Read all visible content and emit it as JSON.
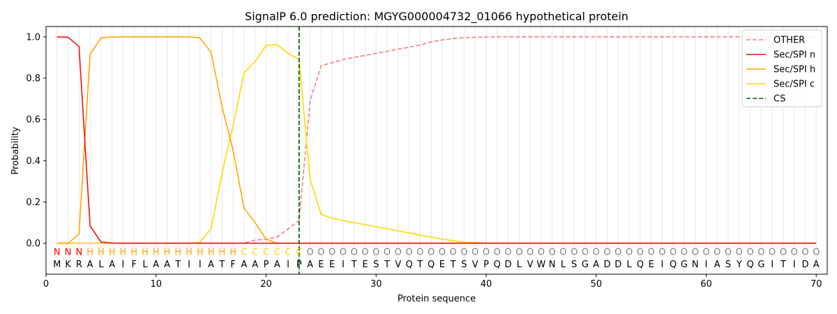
{
  "chart_data": {
    "type": "line",
    "title": "SignalP 6.0 prediction: MGYG000004732_01066 hypothetical protein",
    "xlabel": "Protein sequence",
    "ylabel": "Probability",
    "xlim": [
      0,
      71
    ],
    "ylim": [
      -0.15,
      1.05
    ],
    "x_ticks": [
      0,
      10,
      20,
      30,
      40,
      50,
      60,
      70
    ],
    "y_ticks": [
      0.0,
      0.2,
      0.4,
      0.6,
      0.8,
      1.0
    ],
    "grid": "vertical lines at each residue",
    "legend_position": "top-right",
    "sequence": [
      "M",
      "K",
      "R",
      "A",
      "L",
      "A",
      "I",
      "F",
      "L",
      "A",
      "A",
      "T",
      "I",
      "I",
      "A",
      "T",
      "F",
      "A",
      "A",
      "P",
      "A",
      "I",
      "P",
      "A",
      "E",
      "E",
      "I",
      "T",
      "E",
      "S",
      "T",
      "V",
      "Q",
      "T",
      "Q",
      "E",
      "T",
      "S",
      "V",
      "P",
      "Q",
      "D",
      "L",
      "V",
      "W",
      "N",
      "L",
      "S",
      "G",
      "A",
      "D",
      "D",
      "L",
      "Q",
      "E",
      "I",
      "Q",
      "G",
      "N",
      "I",
      "A",
      "S",
      "Y",
      "Q",
      "G",
      "I",
      "T",
      "I",
      "D",
      "A"
    ],
    "region_labels": [
      "N",
      "N",
      "N",
      "H",
      "H",
      "H",
      "H",
      "H",
      "H",
      "H",
      "H",
      "H",
      "H",
      "H",
      "H",
      "H",
      "H",
      "C",
      "C",
      "C",
      "C",
      "C",
      "C",
      "O",
      "O",
      "O",
      "O",
      "O",
      "O",
      "O",
      "O",
      "O",
      "O",
      "O",
      "O",
      "O",
      "O",
      "O",
      "O",
      "O",
      "O",
      "O",
      "O",
      "O",
      "O",
      "O",
      "O",
      "O",
      "O",
      "O",
      "O",
      "O",
      "O",
      "O",
      "O",
      "O",
      "O",
      "O",
      "O",
      "O",
      "O",
      "O",
      "O",
      "O",
      "O",
      "O",
      "O",
      "O",
      "O",
      "O"
    ],
    "region_colors": {
      "N": "#ff0000",
      "H": "#ffa500",
      "C": "#ffd700",
      "O": "#808080"
    },
    "cleavage_site": 23,
    "series": [
      {
        "name": "OTHER",
        "color": "#f08080",
        "dash": true,
        "values": [
          0,
          0,
          0,
          0,
          0,
          0,
          0,
          0,
          0,
          0,
          0,
          0,
          0,
          0,
          0,
          0,
          0,
          0.001,
          0.015,
          0.02,
          0.03,
          0.07,
          0.11,
          0.69,
          0.86,
          0.875,
          0.89,
          0.9,
          0.91,
          0.92,
          0.93,
          0.94,
          0.95,
          0.96,
          0.975,
          0.985,
          0.992,
          0.996,
          0.998,
          0.999,
          1,
          1,
          1,
          1,
          1,
          1,
          1,
          1,
          1,
          1,
          1,
          1,
          1,
          1,
          1,
          1,
          1,
          1,
          1,
          1,
          1,
          1,
          1,
          1,
          1,
          1,
          1,
          1,
          1,
          1
        ]
      },
      {
        "name": "Sec/SPI n",
        "color": "#ee1111",
        "dash": false,
        "values": [
          1.0,
          0.998,
          0.953,
          0.085,
          0.005,
          0.001,
          0,
          0,
          0,
          0,
          0,
          0,
          0,
          0,
          0,
          0,
          0,
          0,
          0,
          0,
          0,
          0,
          0,
          0,
          0,
          0,
          0,
          0,
          0,
          0,
          0,
          0,
          0,
          0,
          0,
          0,
          0,
          0,
          0,
          0,
          0,
          0,
          0,
          0,
          0,
          0,
          0,
          0,
          0,
          0,
          0,
          0,
          0,
          0,
          0,
          0,
          0,
          0,
          0,
          0,
          0,
          0,
          0,
          0,
          0,
          0,
          0,
          0,
          0,
          0
        ]
      },
      {
        "name": "Sec/SPI h",
        "color": "#ffa500",
        "dash": false,
        "values": [
          0,
          0,
          0.045,
          0.915,
          0.995,
          0.999,
          1.0,
          1.0,
          1.0,
          1.0,
          1.0,
          1.0,
          1.0,
          0.995,
          0.925,
          0.66,
          0.45,
          0.17,
          0.1,
          0.02,
          0,
          0,
          0,
          0,
          0,
          0,
          0,
          0,
          0,
          0,
          0,
          0,
          0,
          0,
          0,
          0,
          0,
          0,
          0,
          0,
          0,
          0,
          0,
          0,
          0,
          0,
          0,
          0,
          0,
          0,
          0,
          0,
          0,
          0,
          0,
          0,
          0,
          0,
          0,
          0,
          0,
          0,
          0,
          0,
          0,
          0,
          0,
          0,
          0,
          0
        ]
      },
      {
        "name": "Sec/SPI c",
        "color": "#ffd700",
        "dash": false,
        "values": [
          0,
          0,
          0,
          0,
          0,
          0,
          0,
          0,
          0,
          0,
          0,
          0,
          0,
          0.005,
          0.07,
          0.34,
          0.57,
          0.825,
          0.88,
          0.958,
          0.962,
          0.92,
          0.89,
          0.31,
          0.14,
          0.122,
          0.11,
          0.1,
          0.09,
          0.08,
          0.07,
          0.06,
          0.05,
          0.04,
          0.03,
          0.02,
          0.012,
          0.006,
          0.003,
          0.001,
          0,
          0,
          0,
          0,
          0,
          0,
          0,
          0,
          0,
          0,
          0,
          0,
          0,
          0,
          0,
          0,
          0,
          0,
          0,
          0,
          0,
          0,
          0,
          0,
          0,
          0,
          0,
          0,
          0,
          0
        ]
      }
    ],
    "legend": [
      "OTHER",
      "Sec/SPI n",
      "Sec/SPI h",
      "Sec/SPI c",
      "CS"
    ],
    "cs_color": "#006400"
  }
}
